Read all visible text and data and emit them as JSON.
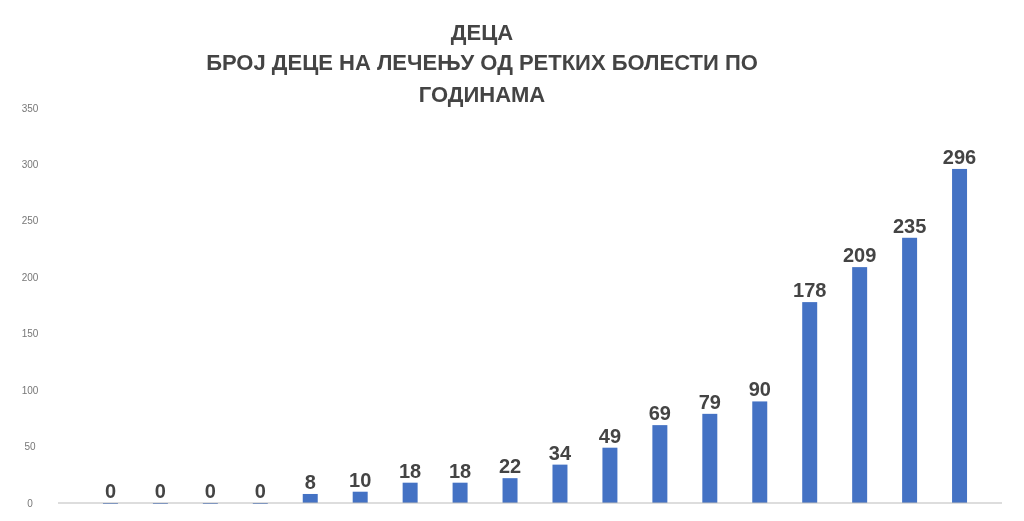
{
  "chart_data": {
    "type": "bar",
    "title": "ДЕЦА",
    "subtitle": "БРОЈ ДЕЦЕ НА ЛЕЧЕЊУ ОД РЕТКИХ БОЛЕСТИ ПО ГОДИНАМА",
    "categories": [
      null,
      null,
      null,
      null,
      null,
      null,
      null,
      null,
      null,
      null,
      null,
      null,
      null,
      null,
      null,
      null,
      null,
      null
    ],
    "values": [
      0,
      0,
      0,
      0,
      8,
      10,
      18,
      18,
      22,
      34,
      49,
      69,
      79,
      90,
      178,
      209,
      235,
      296
    ],
    "color": "#4472c4",
    "ylim": [
      0,
      350
    ],
    "yticks": [
      0,
      50,
      100,
      150,
      200,
      250,
      300,
      350
    ],
    "data_labels": true,
    "tick_labels": "y"
  }
}
